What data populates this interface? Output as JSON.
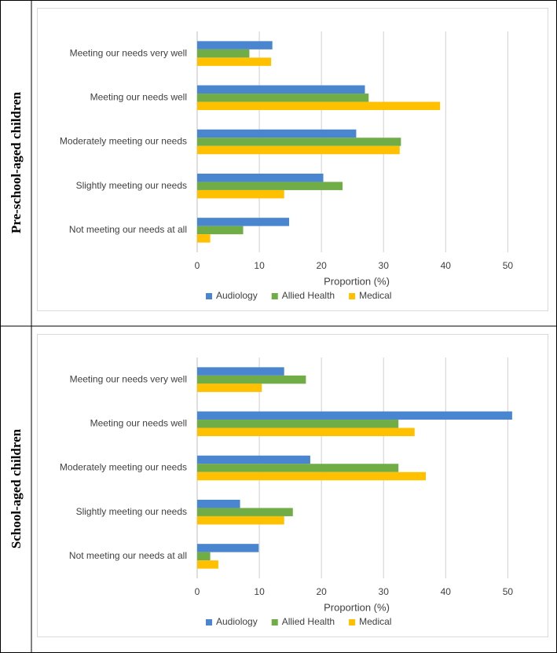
{
  "chart_data": [
    {
      "type": "bar",
      "orientation": "horizontal",
      "title": "Pre-school-aged children",
      "x_label": "Proportion (%)",
      "categories": [
        "Meeting our needs very well",
        "Meeting our needs well",
        "Moderately meeting our needs",
        "Slightly meeting our needs",
        "Not meeting our needs at all"
      ],
      "series": [
        {
          "name": "Audiology",
          "color": "#4a86cf",
          "values": [
            12.1,
            27,
            25.6,
            20.3,
            14.8
          ]
        },
        {
          "name": "Allied Health",
          "color": "#70ad47",
          "values": [
            8.4,
            27.6,
            32.8,
            23.4,
            7.4
          ]
        },
        {
          "name": "Medical",
          "color": "#ffc000",
          "values": [
            11.9,
            39.1,
            32.6,
            14,
            2.1
          ]
        }
      ],
      "xlim": [
        0,
        54
      ],
      "xticks": [
        0,
        10,
        20,
        30,
        40,
        50
      ],
      "grid": true,
      "legend": "bottom"
    },
    {
      "type": "bar",
      "orientation": "horizontal",
      "title": "School-aged children",
      "x_label": "Proportion (%)",
      "categories": [
        "Meeting our needs very well",
        "Meeting our needs well",
        "Moderately meeting our needs",
        "Slightly meeting our needs",
        "Not meeting our needs at all"
      ],
      "series": [
        {
          "name": "Audiology",
          "color": "#4a86cf",
          "values": [
            14,
            50.7,
            18.2,
            6.9,
            9.9
          ]
        },
        {
          "name": "Allied Health",
          "color": "#70ad47",
          "values": [
            17.5,
            32.4,
            32.4,
            15.4,
            2.1
          ]
        },
        {
          "name": "Medical",
          "color": "#ffc000",
          "values": [
            10.4,
            35,
            36.8,
            14,
            3.4
          ]
        }
      ],
      "xlim": [
        0,
        54
      ],
      "xticks": [
        0,
        10,
        20,
        30,
        40,
        50
      ],
      "grid": true,
      "legend": "bottom"
    }
  ]
}
